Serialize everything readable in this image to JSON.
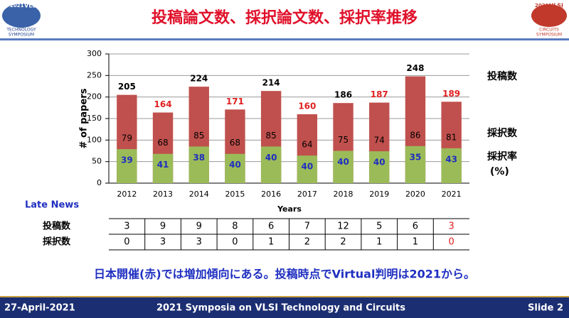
{
  "header": {
    "title": "投稿論文数、採択論文数、採択率推移",
    "logo_left": [
      "2021",
      "VLSI",
      "TECHNOLOGY",
      "SYMPOSIUM"
    ],
    "logo_right": [
      "2021",
      "VLSI",
      "CIRCUITS",
      "SYMPOSIUM"
    ]
  },
  "chart_data": {
    "type": "bar",
    "y_label": "# of papers",
    "x_label": "Years",
    "categories": [
      "2012",
      "2013",
      "2014",
      "2015",
      "2016",
      "2017",
      "2018",
      "2019",
      "2020",
      "2021"
    ],
    "series": [
      {
        "name": "投稿数",
        "color": "#c0504d",
        "values": [
          205,
          164,
          224,
          171,
          214,
          160,
          186,
          187,
          248,
          189
        ],
        "value_label_colors": [
          "#000000",
          "#e02020",
          "#000000",
          "#e02020",
          "#000000",
          "#e02020",
          "#000000",
          "#e02020",
          "#000000",
          "#e02020"
        ]
      },
      {
        "name": "採択数",
        "color": "#9bbb59",
        "values": [
          79,
          68,
          85,
          68,
          85,
          64,
          75,
          74,
          86,
          81
        ]
      }
    ],
    "rate_name": [
      "採択率",
      "(%)"
    ],
    "rates": [
      39,
      41,
      38,
      40,
      40,
      40,
      40,
      40,
      35,
      43
    ],
    "rate_color": "#1f2fc0",
    "ylim": [
      0,
      300
    ],
    "yticks": [
      0,
      50,
      100,
      150,
      200,
      250,
      300
    ],
    "grid": true
  },
  "late_news": {
    "title": "Late News",
    "rows": [
      {
        "label": "投稿数",
        "values": [
          3,
          9,
          9,
          8,
          6,
          7,
          12,
          5,
          6,
          3
        ]
      },
      {
        "label": "採択数",
        "values": [
          0,
          3,
          3,
          0,
          1,
          2,
          2,
          1,
          1,
          0
        ]
      }
    ],
    "highlight": {
      "color": "#e02020",
      "columns": [
        9
      ]
    }
  },
  "note": "日本開催(赤)では増加傾向にある。投稿時点でVirtual判明は2021から。",
  "footer": {
    "date": "27-April-2021",
    "event": "2021 Symposia on VLSI Technology and Circuits",
    "slide": "Slide 2"
  }
}
